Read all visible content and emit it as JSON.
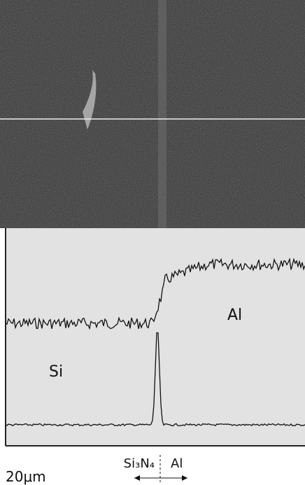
{
  "image": {
    "label_si": "Si",
    "label_al": "Al"
  },
  "caption": {
    "scale_bar": "20μm",
    "left_phase": "Si₃N₄",
    "right_phase": "Al"
  }
}
